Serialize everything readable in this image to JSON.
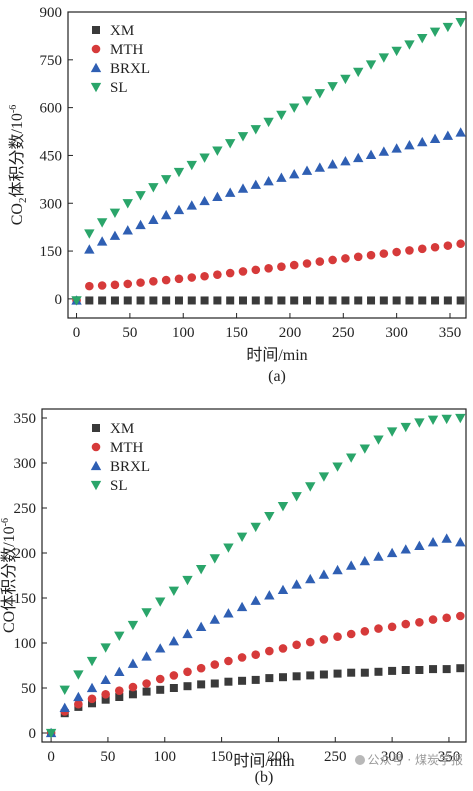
{
  "chart_data": [
    {
      "type": "scatter",
      "caption": "(a)",
      "xlabel": "时间/min",
      "ylabel_main": "CO",
      "ylabel_sub": "2",
      "ylabel_rest": "体积分数/10",
      "ylabel_sup": "-6",
      "xlim": [
        -8,
        365
      ],
      "ylim": [
        -60,
        900
      ],
      "xticks": [
        0,
        50,
        100,
        150,
        200,
        250,
        300,
        350
      ],
      "yticks": [
        0,
        150,
        300,
        450,
        600,
        750,
        900
      ],
      "legend_position": "top-left",
      "x": [
        0,
        12,
        24,
        36,
        48,
        60,
        72,
        84,
        96,
        108,
        120,
        132,
        144,
        156,
        168,
        180,
        192,
        204,
        216,
        228,
        240,
        252,
        264,
        276,
        288,
        300,
        312,
        324,
        336,
        348,
        360
      ],
      "series": [
        {
          "name": "XM",
          "marker": "square",
          "color": "#3a3a3a",
          "values": [
            -5,
            -5,
            -5,
            -5,
            -5,
            -5,
            -5,
            -5,
            -5,
            -5,
            -5,
            -5,
            -5,
            -5,
            -5,
            -5,
            -5,
            -5,
            -5,
            -5,
            -5,
            -5,
            -5,
            -5,
            -5,
            -5,
            -5,
            -5,
            -5,
            -5,
            -5
          ]
        },
        {
          "name": "MTH",
          "marker": "circle",
          "color": "#d63a3a",
          "values": [
            -5,
            40,
            42,
            44,
            47,
            51,
            55,
            59,
            63,
            67,
            71,
            76,
            81,
            86,
            91,
            96,
            101,
            106,
            111,
            117,
            122,
            127,
            132,
            137,
            142,
            147,
            152,
            157,
            162,
            167,
            173
          ]
        },
        {
          "name": "BRXL",
          "marker": "triangle-up",
          "color": "#2f5fb3",
          "values": [
            -5,
            155,
            180,
            198,
            215,
            232,
            248,
            263,
            279,
            293,
            307,
            320,
            333,
            346,
            358,
            369,
            380,
            391,
            402,
            412,
            422,
            432,
            442,
            452,
            462,
            472,
            482,
            492,
            502,
            512,
            522
          ]
        },
        {
          "name": "SL",
          "marker": "triangle-down",
          "color": "#2aa56a",
          "values": [
            -5,
            205,
            240,
            270,
            300,
            325,
            350,
            375,
            398,
            420,
            443,
            465,
            488,
            510,
            532,
            555,
            577,
            600,
            622,
            645,
            667,
            690,
            712,
            735,
            757,
            778,
            798,
            818,
            838,
            853,
            868
          ]
        }
      ]
    },
    {
      "type": "scatter",
      "caption": "(b)",
      "xlabel": "时间/min",
      "ylabel_main": "CO体积分数/10",
      "ylabel_sup": "-6",
      "xlim": [
        -8,
        365
      ],
      "ylim": [
        -10,
        360
      ],
      "xticks": [
        0,
        50,
        100,
        150,
        200,
        250,
        300,
        350
      ],
      "yticks": [
        0,
        50,
        100,
        150,
        200,
        250,
        300,
        350
      ],
      "legend_position": "top-left",
      "x": [
        0,
        12,
        24,
        36,
        48,
        60,
        72,
        84,
        96,
        108,
        120,
        132,
        144,
        156,
        168,
        180,
        192,
        204,
        216,
        228,
        240,
        252,
        264,
        276,
        288,
        300,
        312,
        324,
        336,
        348,
        360
      ],
      "series": [
        {
          "name": "XM",
          "marker": "square",
          "color": "#3a3a3a",
          "values": [
            0,
            22,
            29,
            33,
            37,
            40,
            43,
            46,
            48,
            50,
            52,
            54,
            55,
            57,
            58,
            59,
            61,
            62,
            63,
            64,
            65,
            66,
            67,
            67,
            68,
            69,
            70,
            70,
            71,
            71,
            72
          ]
        },
        {
          "name": "MTH",
          "marker": "circle",
          "color": "#d63a3a",
          "values": [
            0,
            24,
            32,
            38,
            43,
            47,
            51,
            55,
            60,
            64,
            68,
            72,
            76,
            80,
            84,
            87,
            91,
            94,
            98,
            101,
            104,
            107,
            110,
            113,
            116,
            118,
            121,
            123,
            126,
            128,
            130
          ]
        },
        {
          "name": "BRXL",
          "marker": "triangle-up",
          "color": "#2f5fb3",
          "values": [
            0,
            28,
            40,
            50,
            59,
            68,
            77,
            85,
            94,
            102,
            110,
            118,
            126,
            133,
            140,
            147,
            153,
            159,
            165,
            171,
            176,
            181,
            186,
            191,
            196,
            200,
            204,
            208,
            212,
            216,
            212
          ]
        },
        {
          "name": "SL",
          "marker": "triangle-down",
          "color": "#2aa56a",
          "values": [
            0,
            48,
            65,
            80,
            95,
            108,
            120,
            134,
            146,
            158,
            170,
            182,
            194,
            206,
            218,
            229,
            241,
            252,
            263,
            274,
            285,
            296,
            306,
            316,
            326,
            335,
            340,
            345,
            348,
            349,
            350
          ]
        }
      ]
    }
  ],
  "watermark": {
    "text": "公众号 · 煤炭学报"
  }
}
